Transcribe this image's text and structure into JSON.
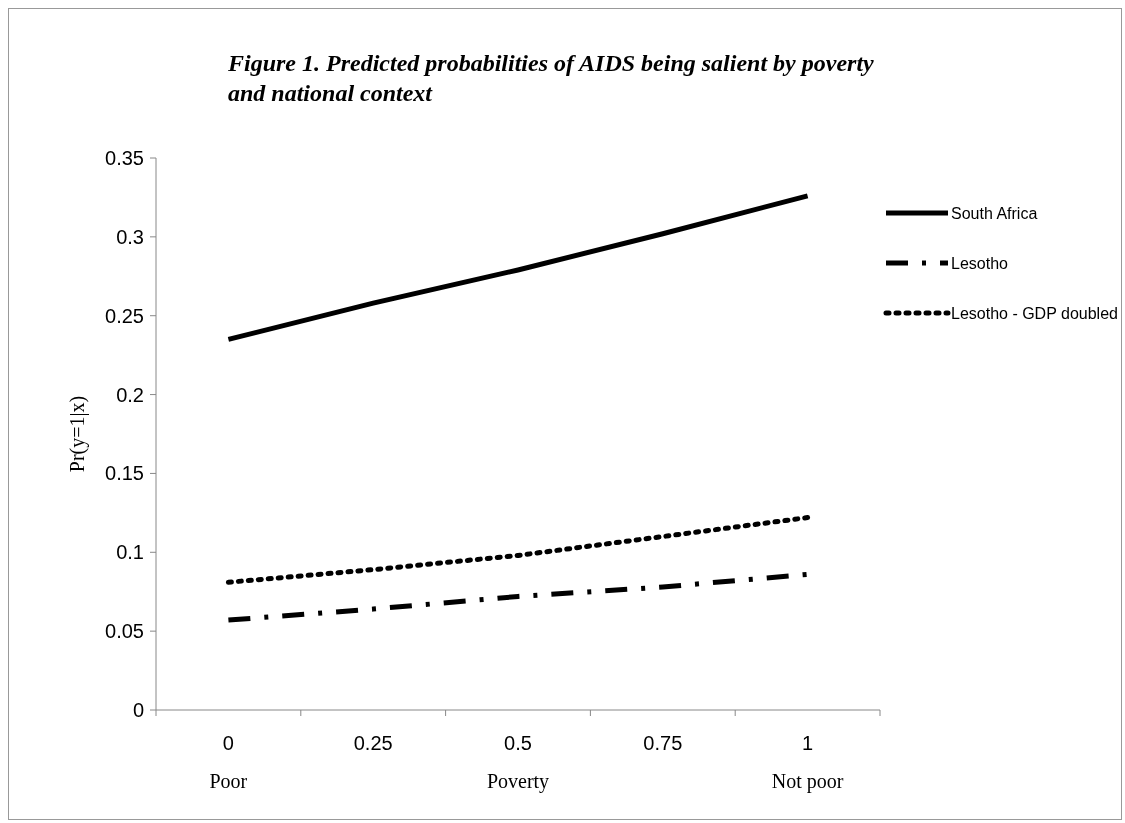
{
  "chart_data": {
    "type": "line",
    "title": "Figure 1. Predicted probabilities of AIDS being salient by poverty and national context",
    "xlabel": "Poverty",
    "ylabel": "Pr(y=1|x)",
    "categories": [
      "0",
      "0.25",
      "0.5",
      "0.75",
      "1"
    ],
    "series": [
      {
        "name": "South Africa",
        "color": "#000000",
        "line_style": "solid",
        "values": [
          0.235,
          0.258,
          0.279,
          0.302,
          0.326
        ]
      },
      {
        "name": "Lesotho",
        "color": "#000000",
        "line_style": "dashed",
        "values": [
          0.057,
          0.064,
          0.072,
          0.078,
          0.086
        ]
      },
      {
        "name": "Lesotho - GDP doubled",
        "color": "#000000",
        "line_style": "dotted",
        "values": [
          0.081,
          0.089,
          0.098,
          0.11,
          0.122
        ]
      }
    ],
    "ylim": [
      0,
      0.35
    ],
    "yticks": [
      0,
      0.05,
      0.1,
      0.15,
      0.2,
      0.25,
      0.3,
      0.35
    ],
    "grid": false,
    "legend": "right",
    "marker": "none",
    "annotations": [
      "Poor",
      "Not poor"
    ]
  }
}
